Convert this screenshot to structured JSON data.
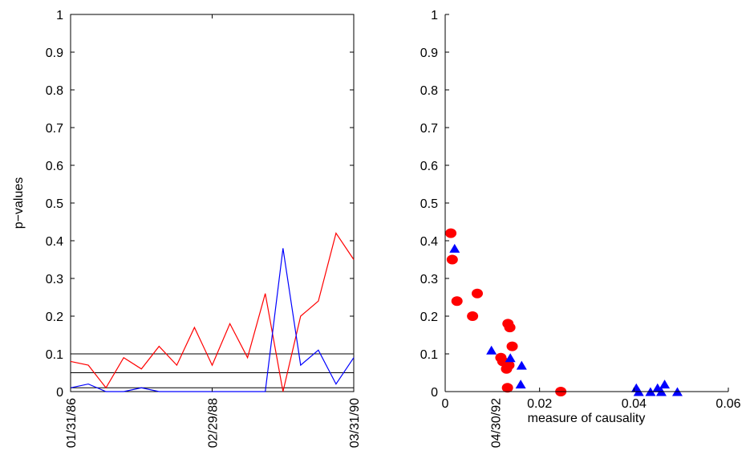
{
  "chart_data": [
    {
      "type": "line",
      "ylabel": "p−values",
      "xlabel": "",
      "ylim": [
        0,
        1
      ],
      "yticks": [
        "0",
        "0.1",
        "0.2",
        "0.3",
        "0.4",
        "0.5",
        "0.6",
        "0.7",
        "0.8",
        "0.9",
        "1"
      ],
      "xticks": [
        "01/31/86",
        "02/29/88",
        "03/31/90",
        "04/30/92"
      ],
      "xtick_index": [
        0,
        8,
        16,
        24
      ],
      "grid": false,
      "reference_lines": [
        0.01,
        0.05,
        0.1
      ],
      "reference_color": "#000000",
      "series": [
        {
          "color": "#ff0000",
          "values": [
            0.08,
            0.07,
            0.01,
            0.09,
            0.06,
            0.12,
            0.07,
            0.17,
            0.07,
            0.18,
            0.09,
            0.26,
            0.0,
            0.2,
            0.24,
            0.42,
            0.35
          ]
        },
        {
          "color": "#0000ff",
          "values": [
            0.01,
            0.02,
            0.0,
            0.0,
            0.01,
            0.0,
            0.0,
            0.0,
            0.0,
            0.0,
            0.0,
            0.0,
            0.38,
            0.07,
            0.11,
            0.02,
            0.09
          ]
        }
      ]
    },
    {
      "type": "scatter",
      "xlabel": "measure of causality",
      "ylabel": "",
      "xlim": [
        0,
        0.06
      ],
      "ylim": [
        0,
        1
      ],
      "xticks": [
        "0",
        "0.02",
        "0.04",
        "0.06"
      ],
      "yticks": [
        "0",
        "0.1",
        "0.2",
        "0.3",
        "0.4",
        "0.5",
        "0.6",
        "0.7",
        "0.8",
        "0.9",
        "1"
      ],
      "grid": false,
      "series": [
        {
          "marker": "circle",
          "color": "#ff0000",
          "points": [
            [
              0.0012,
              0.42
            ],
            [
              0.0015,
              0.35
            ],
            [
              0.0025,
              0.24
            ],
            [
              0.0058,
              0.2
            ],
            [
              0.0068,
              0.26
            ],
            [
              0.0118,
              0.09
            ],
            [
              0.0122,
              0.08
            ],
            [
              0.013,
              0.06
            ],
            [
              0.0133,
              0.18
            ],
            [
              0.0135,
              0.07
            ],
            [
              0.0137,
              0.17
            ],
            [
              0.0142,
              0.12
            ],
            [
              0.0132,
              0.01
            ],
            [
              0.0245,
              0.0
            ]
          ]
        },
        {
          "marker": "triangle",
          "color": "#0000ff",
          "points": [
            [
              0.002,
              0.38
            ],
            [
              0.0098,
              0.11
            ],
            [
              0.0138,
              0.09
            ],
            [
              0.0162,
              0.07
            ],
            [
              0.016,
              0.02
            ],
            [
              0.0405,
              0.01
            ],
            [
              0.041,
              0.0
            ],
            [
              0.0435,
              0.0
            ],
            [
              0.045,
              0.01
            ],
            [
              0.0458,
              0.0
            ],
            [
              0.0465,
              0.02
            ],
            [
              0.0492,
              0.0
            ]
          ]
        }
      ]
    }
  ]
}
